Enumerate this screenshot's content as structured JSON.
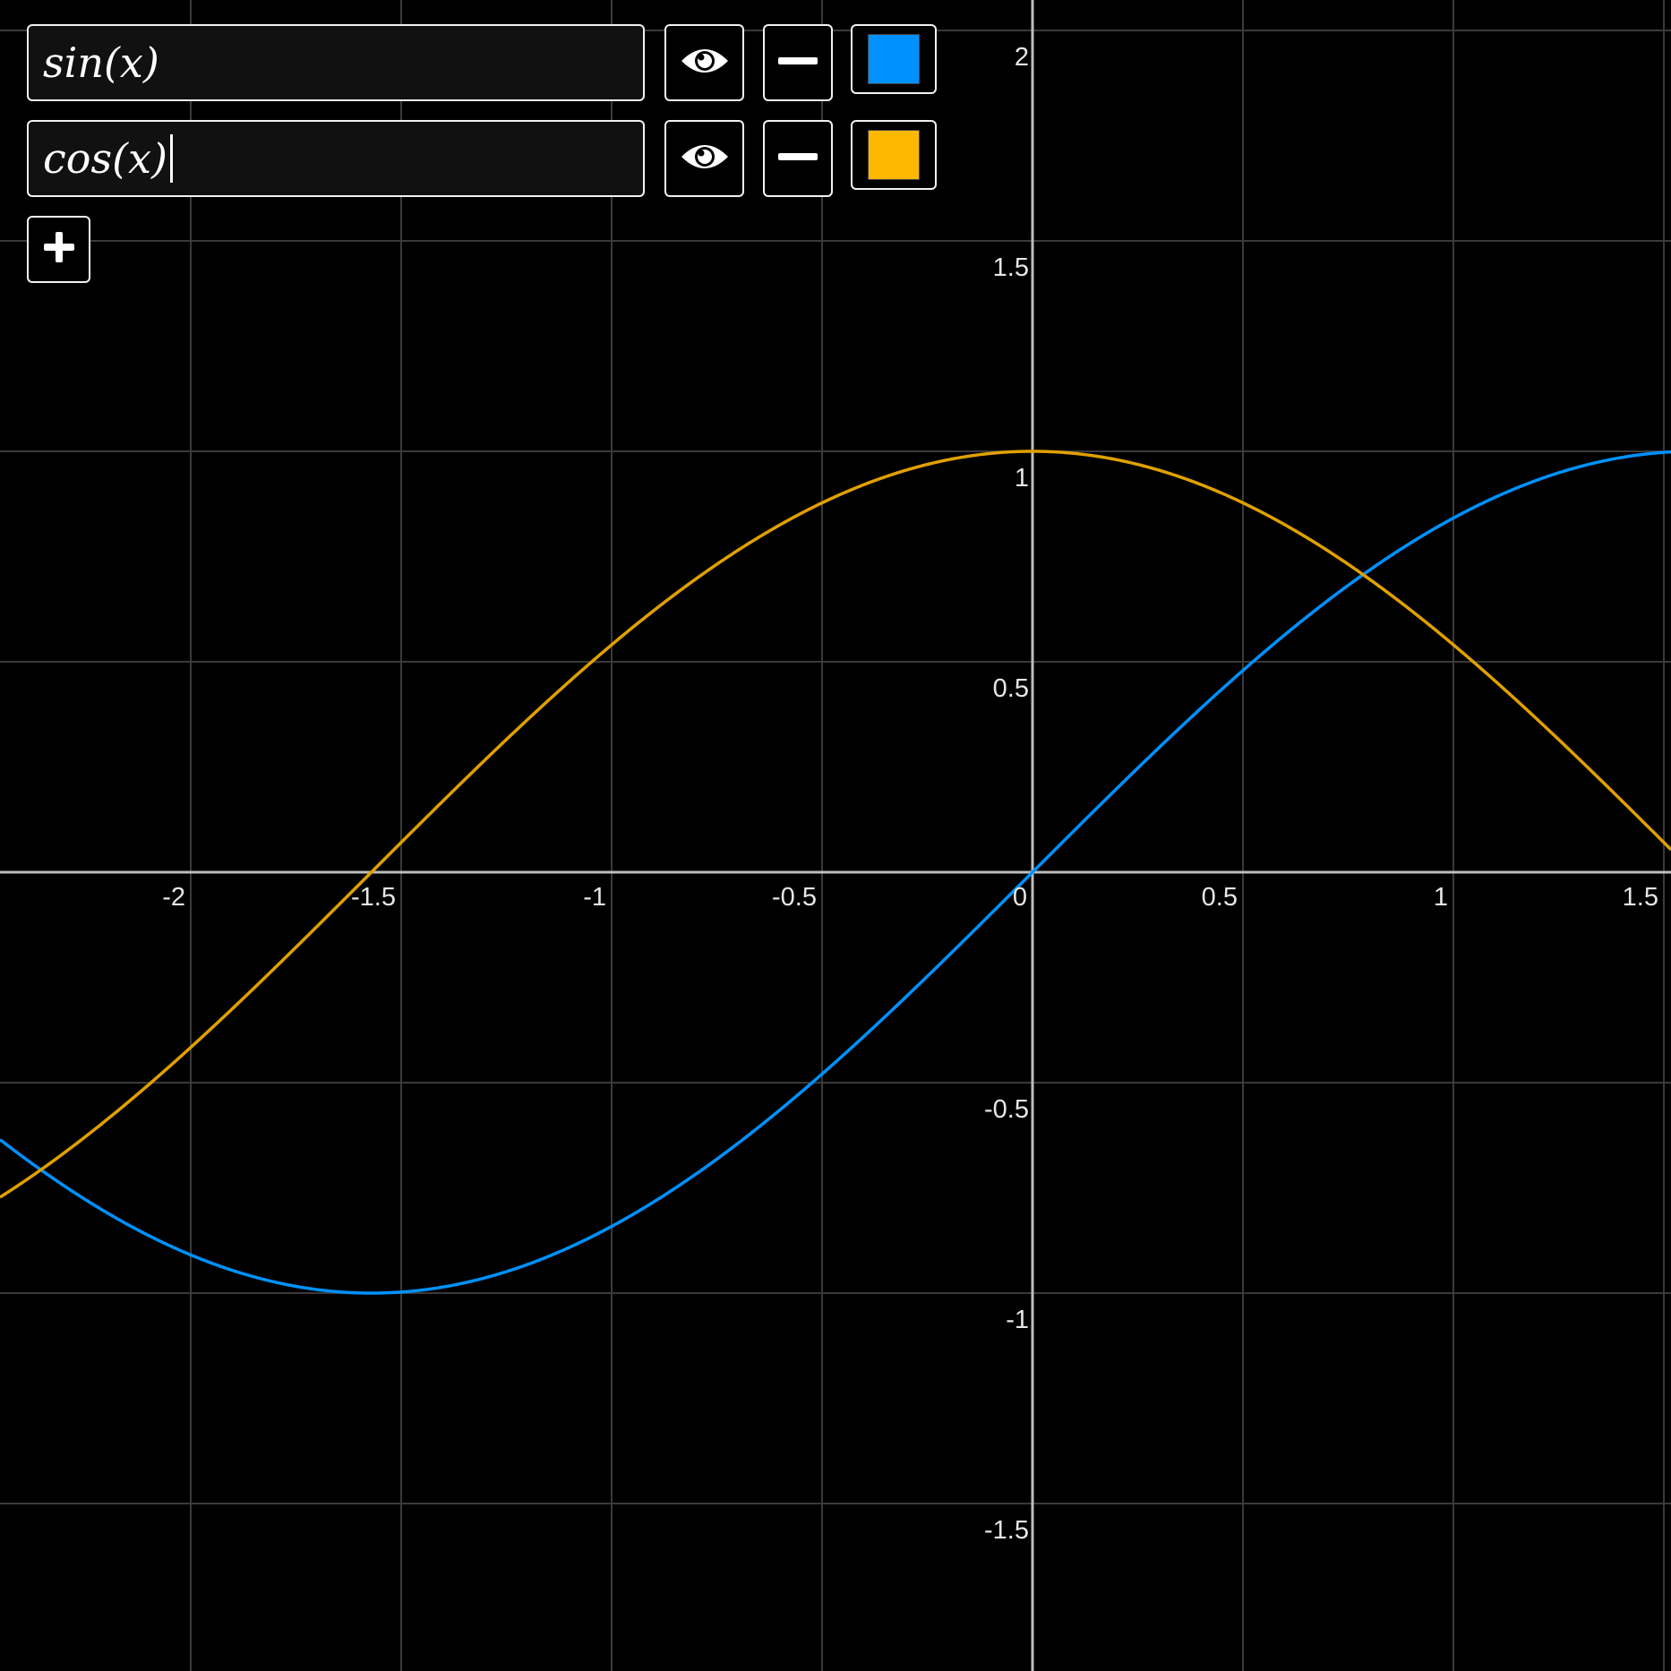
{
  "expressions": [
    {
      "text": "sin(x)",
      "color": "#0091ff",
      "visible": true,
      "active": false
    },
    {
      "text": "cos(x)",
      "color": "#ffb800",
      "visible": true,
      "active": true
    }
  ],
  "icons": {
    "visibility": "eye-icon",
    "delete": "minus-icon",
    "add": "plus-icon"
  },
  "colors": {
    "background": "#000000",
    "grid": "#3a3a3a",
    "axis": "#bdbdbd",
    "label": "#e6e6e6",
    "panel_border": "#f2f2f2"
  },
  "chart_data": {
    "type": "line",
    "title": "",
    "xlabel": "",
    "ylabel": "",
    "xlim": [
      -2.4,
      1.5
    ],
    "ylim": [
      -1.85,
      2.05
    ],
    "grid": true,
    "x_ticks": [
      -2,
      -1.5,
      -1,
      -0.5,
      0,
      0.5,
      1,
      1.5
    ],
    "x_tick_labels": [
      "-2",
      "-1.5",
      "-1",
      "-0.5",
      "0",
      "0.5",
      "1",
      "1.5"
    ],
    "y_ticks": [
      -1.5,
      -1,
      -0.5,
      0.5,
      1,
      1.5,
      2
    ],
    "y_tick_labels": [
      "-1.5",
      "-1",
      "-0.5",
      "0.5",
      "1",
      "1.5",
      "2"
    ],
    "series": [
      {
        "name": "sin(x)",
        "function": "sin",
        "color": "#0091ff"
      },
      {
        "name": "cos(x)",
        "function": "cos",
        "color": "#e0a000"
      }
    ]
  }
}
